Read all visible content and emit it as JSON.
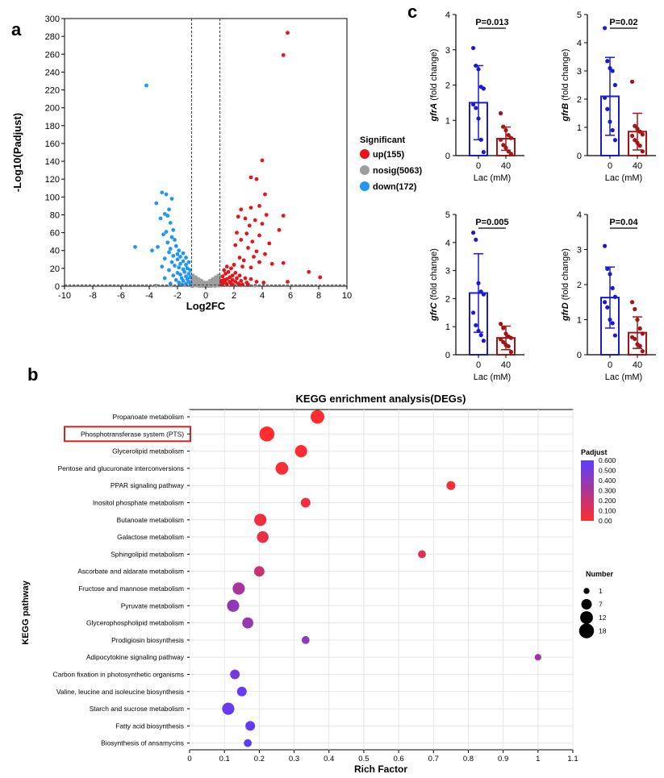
{
  "panels": {
    "a": "a",
    "b": "b",
    "c": "c"
  },
  "chart_data": [
    {
      "type": "scatter",
      "id": "volcano",
      "xlabel": "Log2FC",
      "ylabel": "-Log10(Padjust)",
      "xlim": [
        -10,
        10
      ],
      "ylim": [
        0,
        300
      ],
      "xticks": [
        -10,
        -8,
        -6,
        -4,
        -2,
        0,
        2,
        4,
        6,
        8,
        10
      ],
      "yticks": [
        0,
        20,
        40,
        60,
        80,
        100,
        120,
        140,
        160,
        180,
        200,
        220,
        240,
        260,
        280,
        300
      ],
      "thresholds_x": [
        -1,
        1
      ],
      "threshold_y": 1.3,
      "legend_title": "Significant",
      "series": [
        {
          "name": "up(155)",
          "color": "#e8141a",
          "points": [
            [
              5.8,
              284
            ],
            [
              5.5,
              259
            ],
            [
              4.0,
              141
            ],
            [
              3.6,
              120
            ],
            [
              3.2,
              122
            ],
            [
              4.2,
              103
            ],
            [
              3.8,
              90
            ],
            [
              3.2,
              88
            ],
            [
              2.5,
              86
            ],
            [
              4.3,
              80
            ],
            [
              5.5,
              79
            ],
            [
              2.3,
              78
            ],
            [
              2.8,
              76
            ],
            [
              3.5,
              74
            ],
            [
              4.0,
              70
            ],
            [
              3.1,
              68
            ],
            [
              5.2,
              63
            ],
            [
              2.2,
              60
            ],
            [
              2.9,
              59
            ],
            [
              3.8,
              57
            ],
            [
              2.5,
              52
            ],
            [
              3.3,
              50
            ],
            [
              4.5,
              48
            ],
            [
              2.1,
              46
            ],
            [
              3.0,
              43
            ],
            [
              3.6,
              39
            ],
            [
              4.2,
              36
            ],
            [
              3.4,
              33
            ],
            [
              2.4,
              32
            ],
            [
              2.7,
              29
            ],
            [
              5.5,
              26
            ],
            [
              3.8,
              27
            ],
            [
              4.7,
              25
            ],
            [
              2.0,
              24
            ],
            [
              2.6,
              22
            ],
            [
              3.2,
              21
            ],
            [
              7.3,
              16
            ],
            [
              8.1,
              10
            ],
            [
              5.8,
              5
            ],
            [
              1.5,
              22
            ],
            [
              1.8,
              20
            ],
            [
              1.3,
              18
            ],
            [
              1.6,
              16
            ],
            [
              2.1,
              15
            ],
            [
              1.4,
              14
            ],
            [
              1.9,
              12
            ],
            [
              2.4,
              12
            ],
            [
              1.2,
              11
            ],
            [
              1.7,
              10
            ],
            [
              2.2,
              9
            ],
            [
              2.8,
              9
            ],
            [
              1.5,
              8
            ],
            [
              1.9,
              7
            ],
            [
              3.2,
              8
            ],
            [
              1.3,
              7
            ],
            [
              2.5,
              6
            ],
            [
              1.1,
              6
            ],
            [
              1.7,
              5
            ],
            [
              2.1,
              5
            ],
            [
              3.6,
              5
            ],
            [
              1.4,
              4
            ],
            [
              2.9,
              4
            ],
            [
              1.2,
              3
            ],
            [
              1.8,
              3
            ],
            [
              2.3,
              3
            ],
            [
              4.1,
              4
            ],
            [
              1.5,
              2
            ],
            [
              2.6,
              2
            ],
            [
              1.1,
              2
            ],
            [
              3.0,
              2
            ],
            [
              1.9,
              1.8
            ],
            [
              2.4,
              1.6
            ]
          ]
        },
        {
          "name": "nosig(5063)",
          "color": "#9e9e9e",
          "points": [
            [
              -0.9,
              12
            ],
            [
              -0.7,
              10
            ],
            [
              -0.5,
              8
            ],
            [
              -0.3,
              6
            ],
            [
              -0.1,
              4
            ],
            [
              0.1,
              4
            ],
            [
              0.3,
              6
            ],
            [
              0.5,
              8
            ],
            [
              0.7,
              10
            ],
            [
              0.9,
              12
            ],
            [
              -0.8,
              7
            ],
            [
              -0.6,
              5
            ],
            [
              -0.4,
              4
            ],
            [
              0.4,
              4
            ],
            [
              0.6,
              5
            ],
            [
              0.8,
              7
            ],
            [
              -0.2,
              2
            ],
            [
              0.0,
              1
            ],
            [
              0.2,
              2
            ],
            [
              -0.95,
              3
            ],
            [
              0.95,
              3
            ],
            [
              -1.5,
              1
            ],
            [
              -2.5,
              0.8
            ],
            [
              -3.5,
              0.6
            ],
            [
              1.5,
              1
            ],
            [
              2.5,
              0.8
            ],
            [
              3.5,
              0.6
            ],
            [
              -0.65,
              2
            ],
            [
              0.65,
              2
            ],
            [
              -0.85,
              9
            ],
            [
              0.85,
              9
            ]
          ]
        },
        {
          "name": "down(172)",
          "color": "#2196f3",
          "points": [
            [
              -4.2,
              225
            ],
            [
              -3.1,
              105
            ],
            [
              -2.8,
              103
            ],
            [
              -2.4,
              98
            ],
            [
              -3.5,
              93
            ],
            [
              -2.6,
              86
            ],
            [
              -2.9,
              81
            ],
            [
              -2.7,
              79
            ],
            [
              -3.2,
              76
            ],
            [
              -2.5,
              71
            ],
            [
              -2.3,
              63
            ],
            [
              -2.8,
              61
            ],
            [
              -3.0,
              58
            ],
            [
              -2.4,
              55
            ],
            [
              -2.2,
              52
            ],
            [
              -2.7,
              49
            ],
            [
              -5.0,
              44
            ],
            [
              -3.4,
              44
            ],
            [
              -3.8,
              40
            ],
            [
              -2.1,
              45
            ],
            [
              -2.5,
              42
            ],
            [
              -1.9,
              40
            ],
            [
              -2.6,
              38
            ],
            [
              -2.0,
              36
            ],
            [
              -1.6,
              37
            ],
            [
              -2.3,
              34
            ],
            [
              -1.8,
              33
            ],
            [
              -1.4,
              32
            ],
            [
              -2.9,
              31
            ],
            [
              -2.0,
              30
            ],
            [
              -1.6,
              28
            ],
            [
              -2.4,
              27
            ],
            [
              -1.2,
              27
            ],
            [
              -1.8,
              25
            ],
            [
              -1.4,
              24
            ],
            [
              -2.2,
              23
            ],
            [
              -3.1,
              22
            ],
            [
              -1.9,
              21
            ],
            [
              -1.3,
              20
            ],
            [
              -1.6,
              19
            ],
            [
              -2.6,
              18
            ],
            [
              -1.1,
              18
            ],
            [
              -1.5,
              16
            ],
            [
              -2.0,
              15
            ],
            [
              -1.2,
              14
            ],
            [
              -1.8,
              13
            ],
            [
              -2.3,
              12
            ],
            [
              -1.4,
              11
            ],
            [
              -1.1,
              10
            ],
            [
              -1.7,
              9
            ],
            [
              -2.9,
              9
            ],
            [
              -1.3,
              8
            ],
            [
              -2.1,
              7
            ],
            [
              -1.6,
              6
            ],
            [
              -1.2,
              5
            ],
            [
              -1.9,
              4
            ],
            [
              -1.4,
              3
            ],
            [
              -2.5,
              3
            ],
            [
              -1.1,
              2.5
            ],
            [
              -1.7,
              2
            ]
          ]
        }
      ]
    },
    {
      "type": "bar",
      "id": "gfrA",
      "ylabel_italic": "gfrA",
      "ylabel_rest": " (fold change)",
      "xlabel": "Lac (mM)",
      "categories": [
        "0",
        "40"
      ],
      "values": [
        1.5,
        0.48
      ],
      "sd": [
        1.05,
        0.33
      ],
      "ylim": [
        0,
        4
      ],
      "yticks": [
        0,
        1,
        2,
        3,
        4
      ],
      "pvalue": "P=0.013",
      "points": [
        [
          3.05,
          2.55,
          2.45,
          1.95,
          1.9,
          1.45,
          1.35,
          1.05,
          0.45,
          0.1
        ],
        [
          1.2,
          0.82,
          0.72,
          0.58,
          0.5,
          0.45,
          0.3,
          0.22,
          0.12,
          0.05
        ]
      ],
      "colors": [
        "#1a1ad6",
        "#a31515"
      ]
    },
    {
      "type": "bar",
      "id": "gfrB",
      "ylabel_italic": "gfrB",
      "ylabel_rest": " (fold change)",
      "xlabel": "Lac (mM)",
      "categories": [
        "0",
        "40"
      ],
      "values": [
        2.1,
        0.85
      ],
      "sd": [
        1.38,
        0.65
      ],
      "ylim": [
        0,
        5
      ],
      "yticks": [
        0,
        1,
        2,
        3,
        4,
        5
      ],
      "pvalue": "P=0.02",
      "points": [
        [
          4.52,
          3.35,
          3.1,
          3.0,
          2.5,
          2.05,
          1.65,
          1.2,
          0.9,
          0.55
        ],
        [
          2.62,
          1.05,
          0.95,
          0.85,
          0.75,
          0.7,
          0.55,
          0.45,
          0.35,
          0.15
        ]
      ],
      "colors": [
        "#1a1ad6",
        "#a31515"
      ]
    },
    {
      "type": "bar",
      "id": "gfrC",
      "ylabel_italic": "gfrC",
      "ylabel_rest": " (fold change)",
      "xlabel": "Lac (mM)",
      "categories": [
        "0",
        "40"
      ],
      "values": [
        2.2,
        0.6
      ],
      "sd": [
        1.4,
        0.42
      ],
      "ylim": [
        0,
        5
      ],
      "yticks": [
        0,
        1,
        2,
        3,
        4,
        5
      ],
      "pvalue": "P=0.005",
      "points": [
        [
          4.35,
          4.1,
          2.55,
          2.25,
          2.15,
          1.5,
          1.05,
          0.85,
          0.7,
          0.5
        ],
        [
          1.1,
          0.95,
          0.75,
          0.65,
          0.6,
          0.55,
          0.45,
          0.35,
          0.3,
          0.1
        ]
      ],
      "colors": [
        "#1a1ad6",
        "#a31515"
      ]
    },
    {
      "type": "bar",
      "id": "gfrD",
      "ylabel_italic": "gfrD",
      "ylabel_rest": " (fold change)",
      "xlabel": "Lac (mM)",
      "categories": [
        "0",
        "40"
      ],
      "values": [
        1.63,
        0.63
      ],
      "sd": [
        0.87,
        0.45
      ],
      "ylim": [
        0,
        4
      ],
      "yticks": [
        0,
        1,
        2,
        3,
        4
      ],
      "pvalue": "P=0.04",
      "points": [
        [
          3.1,
          2.45,
          2.3,
          1.9,
          1.65,
          1.5,
          1.35,
          1.0,
          0.9,
          0.55
        ],
        [
          1.5,
          1.3,
          1.0,
          0.75,
          0.6,
          0.5,
          0.45,
          0.3,
          0.25,
          0.1
        ]
      ],
      "colors": [
        "#1a1ad6",
        "#a31515"
      ]
    },
    {
      "type": "scatter",
      "id": "kegg",
      "title": "KEGG enrichment analysis(DEGs)",
      "xlabel": "Rich Factor",
      "ylabel": "KEGG pathway",
      "xlim": [
        0,
        1.1
      ],
      "xticks": [
        0,
        0.1,
        0.2,
        0.3,
        0.4,
        0.5,
        0.6,
        0.7,
        0.8,
        0.9,
        1,
        1.1
      ],
      "xtick_labels": [
        "0",
        "0.1",
        "0.2",
        "0.3",
        "0.4",
        "0.5",
        "0.6",
        "0.7",
        "0.8",
        "0.9",
        "1",
        "1.1"
      ],
      "highlighted": "Phosphotransferase system (PTS)",
      "pathways": [
        {
          "name": "Propanoate metabolism",
          "rich": 0.367,
          "number": 11,
          "padj": 0.0
        },
        {
          "name": "Phosphotransferase system (PTS)",
          "rich": 0.222,
          "number": 14,
          "padj": 0.0
        },
        {
          "name": "Glycerolipid metabolism",
          "rich": 0.32,
          "number": 8,
          "padj": 0.01
        },
        {
          "name": "Pentose and glucuronate interconversions",
          "rich": 0.265,
          "number": 9,
          "padj": 0.02
        },
        {
          "name": "PPAR signaling pathway",
          "rich": 0.75,
          "number": 3,
          "padj": 0.03
        },
        {
          "name": "Inositol phosphate metabolism",
          "rich": 0.333,
          "number": 4,
          "padj": 0.04
        },
        {
          "name": "Butanoate metabolism",
          "rich": 0.203,
          "number": 8,
          "padj": 0.05
        },
        {
          "name": "Galactose metabolism",
          "rich": 0.21,
          "number": 7,
          "padj": 0.07
        },
        {
          "name": "Sphingolipid metabolism",
          "rich": 0.667,
          "number": 2,
          "padj": 0.12
        },
        {
          "name": "Ascorbate and aldarate metabolism",
          "rich": 0.2,
          "number": 5,
          "padj": 0.2
        },
        {
          "name": "Fructose and mannose metabolism",
          "rich": 0.141,
          "number": 8,
          "padj": 0.32
        },
        {
          "name": "Pyruvate metabolism",
          "rich": 0.125,
          "number": 8,
          "padj": 0.4
        },
        {
          "name": "Glycerophospholipid metabolism",
          "rich": 0.167,
          "number": 6,
          "padj": 0.38
        },
        {
          "name": "Prodigiosin biosynthesis",
          "rich": 0.333,
          "number": 2,
          "padj": 0.42
        },
        {
          "name": "Adipocytokine signaling pathway",
          "rich": 1.0,
          "number": 1,
          "padj": 0.35
        },
        {
          "name": "Carbon fixation in photosynthetic organisms",
          "rich": 0.13,
          "number": 4,
          "padj": 0.5
        },
        {
          "name": "Valine, leucine and isoleucine biosynthesis",
          "rich": 0.15,
          "number": 4,
          "padj": 0.55
        },
        {
          "name": "Starch and sucrose metabolism",
          "rich": 0.111,
          "number": 8,
          "padj": 0.55
        },
        {
          "name": "Fatty acid biosynthesis",
          "rich": 0.174,
          "number": 4,
          "padj": 0.57
        },
        {
          "name": "Biosynthesis of ansamycins",
          "rich": 0.167,
          "number": 2,
          "padj": 0.6
        }
      ],
      "padj_legend": {
        "title": "Padjust",
        "ticks": [
          "0.600",
          "0.500",
          "0.400",
          "0.300",
          "0.200",
          "0.100",
          "0.00"
        ],
        "range": [
          0,
          0.6
        ],
        "color_low": "#ff2d2d",
        "color_high": "#5a3dff"
      },
      "number_legend": {
        "title": "Number",
        "values": [
          1,
          7,
          12,
          18
        ],
        "labels": [
          "1",
          "7",
          "12",
          "18"
        ]
      }
    }
  ]
}
